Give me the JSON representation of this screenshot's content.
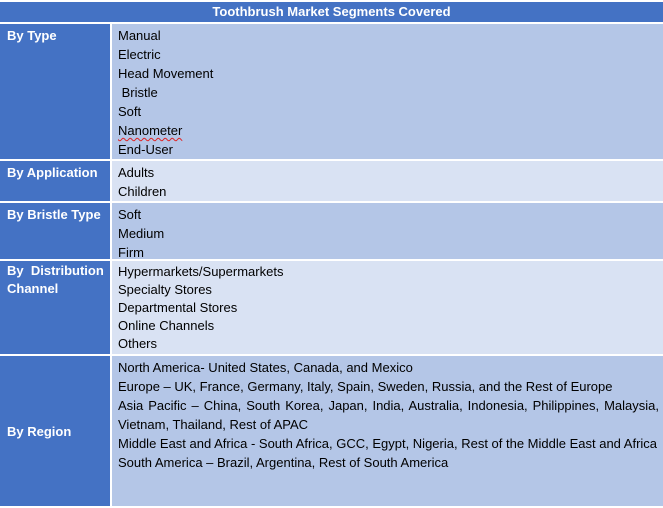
{
  "title": "Toothbrush Market Segments Covered",
  "rows": [
    {
      "label": "By Type",
      "items": [
        "Manual",
        "Electric",
        "Head Movement",
        " Bristle",
        "Soft",
        "Nanometer",
        "End-User"
      ]
    },
    {
      "label": "By Application",
      "items": [
        "Adults",
        "Children"
      ]
    },
    {
      "label": "By Bristle Type",
      "items": [
        "Soft",
        "Medium",
        "Firm"
      ]
    },
    {
      "label": "By  Distribution Channel",
      "items": [
        "Hypermarkets/Supermarkets",
        "Specialty Stores",
        "Departmental Stores",
        "Online Channels",
        "Others"
      ]
    },
    {
      "label": "By Region",
      "items": [
        "North America- United States, Canada, and Mexico",
        "Europe – UK, France, Germany, Italy, Spain, Sweden, Russia, and the Rest of Europe",
        "Asia Pacific – China, South Korea, Japan, India, Australia, Indonesia, Philippines, Malaysia, Vietnam, Thailand, Rest of APAC",
        "Middle East and Africa - South Africa, GCC, Egypt, Nigeria, Rest of the Middle East and Africa",
        "South America – Brazil, Argentina, Rest of South America"
      ]
    }
  ],
  "colors": {
    "header": "#4472C4",
    "band_dark": "#B4C6E7",
    "band_light": "#D9E2F3"
  }
}
